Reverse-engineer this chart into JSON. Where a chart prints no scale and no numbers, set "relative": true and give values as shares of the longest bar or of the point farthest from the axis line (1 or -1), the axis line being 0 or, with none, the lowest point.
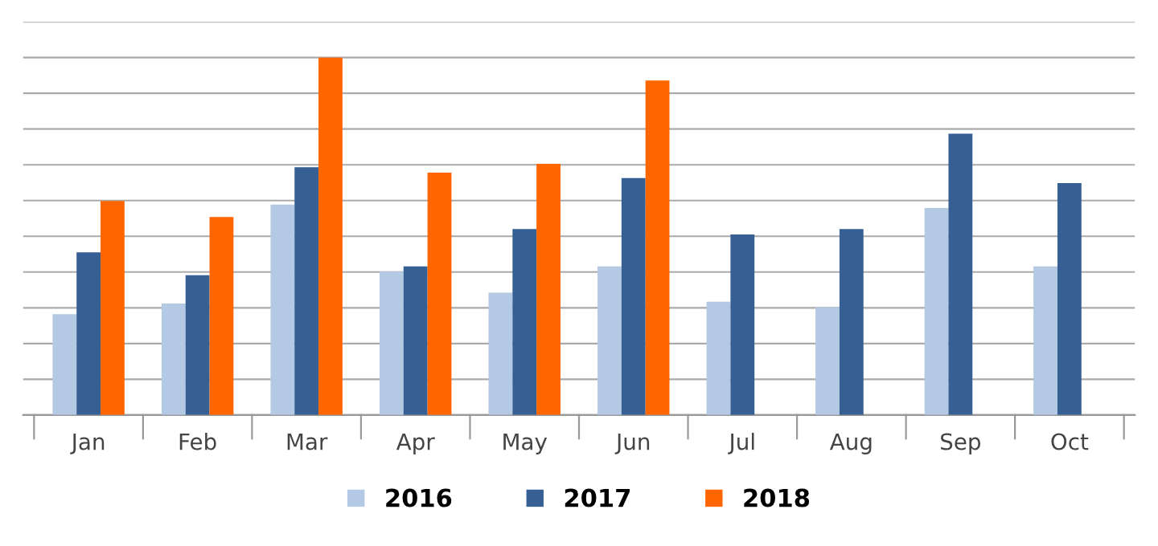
{
  "chart_data": {
    "type": "bar",
    "relative": true,
    "categories": [
      "Jan",
      "Feb",
      "Mar",
      "Apr",
      "May",
      "Jun",
      "Jul",
      "Aug",
      "Sep",
      "Oct"
    ],
    "series": [
      {
        "name": "2016",
        "color": "#b4c9e3",
        "values": [
          0.282,
          0.312,
          0.589,
          0.401,
          0.342,
          0.416,
          0.317,
          0.302,
          0.579,
          0.416
        ]
      },
      {
        "name": "2017",
        "color": "#365f94",
        "values": [
          0.455,
          0.391,
          0.693,
          0.416,
          0.52,
          0.663,
          0.505,
          0.52,
          0.787,
          0.649
        ]
      },
      {
        "name": "2018",
        "color": "#ff6600",
        "values": [
          0.599,
          0.554,
          1,
          0.678,
          0.703,
          0.936,
          null,
          null,
          null,
          null
        ]
      }
    ],
    "grid": "y",
    "legend": "bottom"
  }
}
